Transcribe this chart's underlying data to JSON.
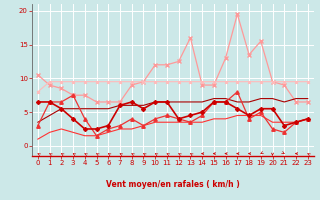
{
  "background_color": "#cce8e8",
  "grid_color": "#ffffff",
  "xlabel": "Vent moyen/en rafales ( km/h )",
  "xlim": [
    -0.5,
    23.5
  ],
  "ylim": [
    -1.5,
    21
  ],
  "yticks": [
    0,
    5,
    10,
    15,
    20
  ],
  "xticks": [
    0,
    1,
    2,
    3,
    4,
    5,
    6,
    7,
    8,
    9,
    10,
    11,
    12,
    13,
    14,
    15,
    16,
    17,
    18,
    19,
    20,
    21,
    22,
    23
  ],
  "series": [
    {
      "x": [
        0,
        1,
        2,
        3,
        4,
        5,
        6,
        7,
        8,
        9,
        10,
        11,
        12,
        13,
        14,
        15,
        16,
        17,
        18,
        19,
        20,
        21,
        22,
        23
      ],
      "y": [
        10.5,
        9.0,
        8.5,
        7.5,
        7.5,
        6.5,
        6.5,
        6.5,
        9.0,
        9.5,
        12.0,
        12.0,
        12.5,
        16.0,
        9.0,
        9.0,
        13.0,
        19.5,
        13.5,
        15.5,
        9.5,
        9.0,
        6.5,
        6.5
      ],
      "color": "#ff9999",
      "lw": 0.9,
      "marker": "x",
      "ms": 2.5,
      "zorder": 2
    },
    {
      "x": [
        0,
        1,
        2,
        3,
        4,
        5,
        6,
        7,
        8,
        9,
        10,
        11,
        12,
        13,
        14,
        15,
        16,
        17,
        18,
        19,
        20,
        21,
        22,
        23
      ],
      "y": [
        3.0,
        6.5,
        6.5,
        7.5,
        4.0,
        1.5,
        2.5,
        3.0,
        4.0,
        3.0,
        4.0,
        4.5,
        4.0,
        3.5,
        4.5,
        6.5,
        6.5,
        8.0,
        4.0,
        5.0,
        2.5,
        2.0,
        3.5,
        4.0
      ],
      "color": "#ee3333",
      "lw": 0.9,
      "marker": "^",
      "ms": 2.5,
      "zorder": 3
    },
    {
      "x": [
        0,
        1,
        2,
        3,
        4,
        5,
        6,
        7,
        8,
        9,
        10,
        11,
        12,
        13,
        14,
        15,
        16,
        17,
        18,
        19,
        20,
        21,
        22,
        23
      ],
      "y": [
        6.5,
        6.5,
        5.5,
        4.0,
        2.5,
        2.5,
        3.0,
        6.0,
        6.5,
        5.5,
        6.5,
        6.5,
        4.0,
        4.5,
        5.0,
        6.5,
        6.5,
        5.5,
        4.5,
        5.5,
        5.5,
        3.0,
        3.5,
        4.0
      ],
      "color": "#cc0000",
      "lw": 1.2,
      "marker": "D",
      "ms": 2.0,
      "zorder": 4
    },
    {
      "x": [
        0,
        1,
        2,
        3,
        4,
        5,
        6,
        7,
        8,
        9,
        10,
        11,
        12,
        13,
        14,
        15,
        16,
        17,
        18,
        19,
        20,
        21,
        22,
        23
      ],
      "y": [
        1.0,
        2.0,
        2.5,
        2.0,
        1.5,
        1.5,
        2.0,
        2.5,
        2.5,
        3.0,
        3.5,
        3.5,
        3.5,
        3.5,
        3.5,
        4.0,
        4.0,
        4.5,
        4.5,
        4.5,
        3.5,
        3.5,
        3.5,
        4.0
      ],
      "color": "#ff3333",
      "lw": 0.8,
      "marker": null,
      "ms": 0,
      "zorder": 2
    },
    {
      "x": [
        0,
        1,
        2,
        3,
        4,
        5,
        6,
        7,
        8,
        9,
        10,
        11,
        12,
        13,
        14,
        15,
        16,
        17,
        18,
        19,
        20,
        21,
        22,
        23
      ],
      "y": [
        3.5,
        4.5,
        5.5,
        5.5,
        5.5,
        5.5,
        5.5,
        6.0,
        6.0,
        6.0,
        6.5,
        6.5,
        6.5,
        6.5,
        6.5,
        7.0,
        7.0,
        6.5,
        6.5,
        7.0,
        7.0,
        6.5,
        7.0,
        7.0
      ],
      "color": "#aa0000",
      "lw": 0.8,
      "marker": null,
      "ms": 0,
      "zorder": 2
    },
    {
      "x": [
        0,
        1,
        2,
        3,
        4,
        5,
        6,
        7,
        8,
        9,
        10,
        11,
        12,
        13,
        14,
        15,
        16,
        17,
        18,
        19,
        20,
        21,
        22,
        23
      ],
      "y": [
        8.0,
        9.5,
        9.5,
        9.5,
        9.5,
        9.5,
        9.5,
        9.5,
        9.5,
        9.5,
        9.5,
        9.5,
        9.5,
        9.5,
        9.5,
        9.5,
        9.5,
        9.5,
        9.5,
        9.5,
        9.5,
        9.5,
        9.5,
        9.5
      ],
      "color": "#ffbbbb",
      "lw": 0.8,
      "marker": "x",
      "ms": 2.0,
      "zorder": 2
    }
  ],
  "wind_angles": [
    225,
    225,
    225,
    225,
    225,
    225,
    225,
    225,
    225,
    225,
    225,
    225,
    225,
    225,
    270,
    270,
    270,
    270,
    270,
    315,
    0,
    45,
    270,
    225
  ]
}
